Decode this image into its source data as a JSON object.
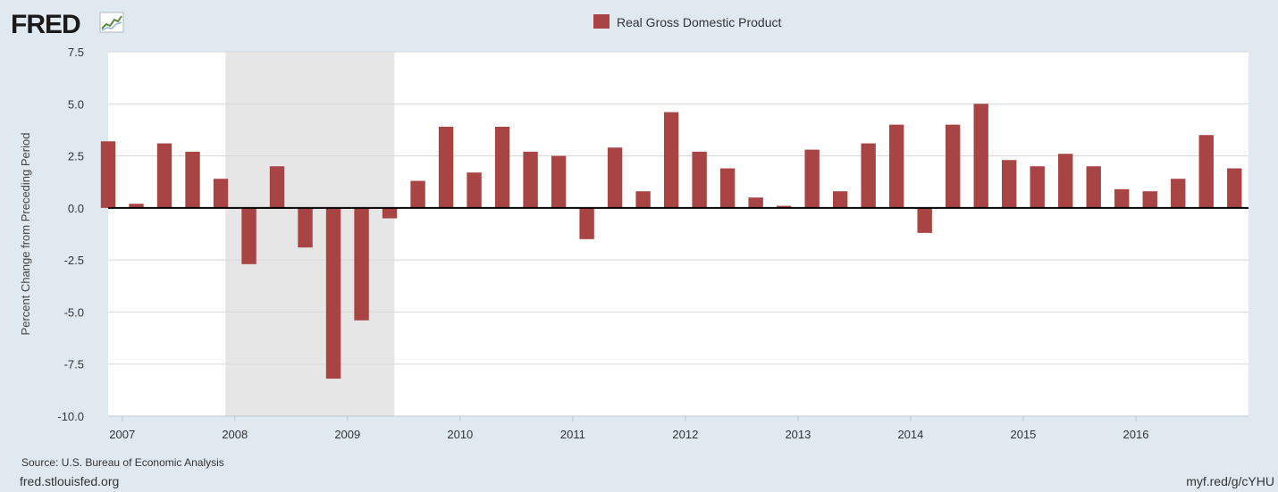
{
  "logo": {
    "text": "FRED"
  },
  "footer": {
    "source": "Source: U.S. Bureau of Economic Analysis",
    "site": "fred.stlouisfed.org",
    "shortlink": "myf.red/g/cYHU"
  },
  "colors": {
    "background": "#e1e9f0",
    "plot": "#ffffff",
    "bar": "#a84444",
    "recession": "#e6e6e6",
    "grid": "#d8d8d8",
    "zero_line": "#000000"
  },
  "chart_data": {
    "type": "bar",
    "title": "",
    "xlabel": "",
    "ylabel": "Percent Change from Preceding Period",
    "ylim": [
      -10.0,
      7.5
    ],
    "yticks": [
      "7.5",
      "5.0",
      "2.5",
      "0.0",
      "-2.5",
      "-5.0",
      "-7.5",
      "-10.0"
    ],
    "xticks": [
      "2007",
      "2008",
      "2009",
      "2010",
      "2011",
      "2012",
      "2013",
      "2014",
      "2015",
      "2016"
    ],
    "grid": true,
    "legend": "top-center",
    "series": [
      {
        "name": "Real Gross Domestic Product",
        "color": "#a84444",
        "x": [
          "2006-Q4",
          "2007-Q1",
          "2007-Q2",
          "2007-Q3",
          "2007-Q4",
          "2008-Q1",
          "2008-Q2",
          "2008-Q3",
          "2008-Q4",
          "2009-Q1",
          "2009-Q2",
          "2009-Q3",
          "2009-Q4",
          "2010-Q1",
          "2010-Q2",
          "2010-Q3",
          "2010-Q4",
          "2011-Q1",
          "2011-Q2",
          "2011-Q3",
          "2011-Q4",
          "2012-Q1",
          "2012-Q2",
          "2012-Q3",
          "2012-Q4",
          "2013-Q1",
          "2013-Q2",
          "2013-Q3",
          "2013-Q4",
          "2014-Q1",
          "2014-Q2",
          "2014-Q3",
          "2014-Q4",
          "2015-Q1",
          "2015-Q2",
          "2015-Q3",
          "2015-Q4",
          "2016-Q1",
          "2016-Q2",
          "2016-Q3",
          "2016-Q4"
        ],
        "values": [
          3.2,
          0.2,
          3.1,
          2.7,
          1.4,
          -2.7,
          2.0,
          -1.9,
          -8.2,
          -5.4,
          -0.5,
          1.3,
          3.9,
          1.7,
          3.9,
          2.7,
          2.5,
          -1.5,
          2.9,
          0.8,
          4.6,
          2.7,
          1.9,
          0.5,
          0.1,
          2.8,
          0.8,
          3.1,
          4.0,
          -1.2,
          4.0,
          5.0,
          2.3,
          2.0,
          2.6,
          2.0,
          0.9,
          0.8,
          1.4,
          3.5,
          1.9
        ]
      }
    ],
    "recessions": [
      {
        "start": "2007-12",
        "end": "2009-06"
      }
    ]
  }
}
